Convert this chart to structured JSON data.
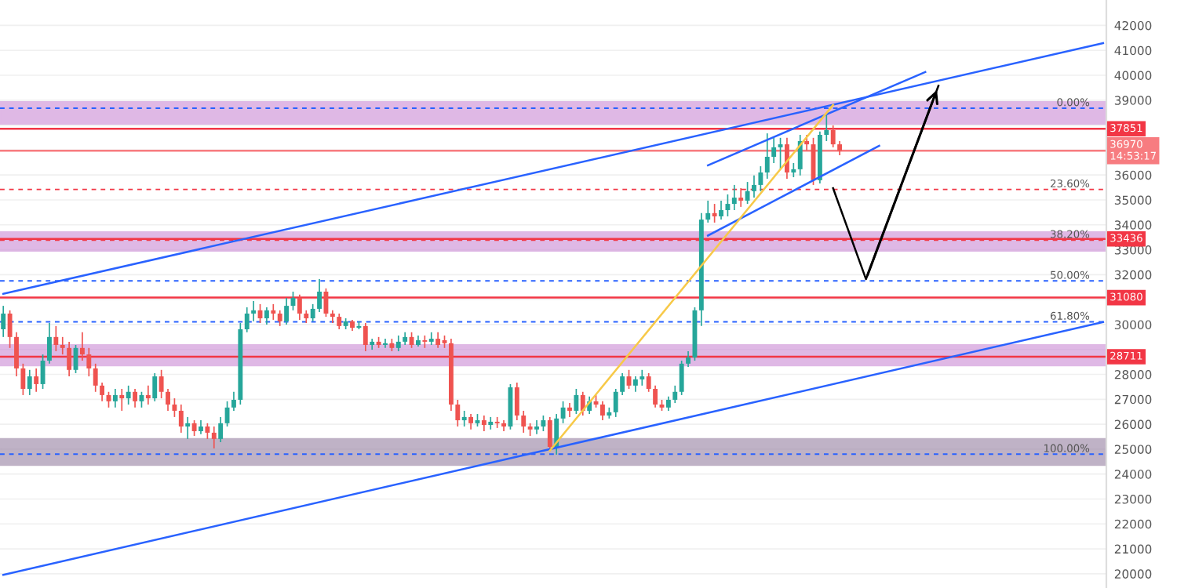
{
  "chart_data": {
    "type": "candlestick",
    "categories": [
      null,
      null,
      null,
      null,
      null,
      null,
      null,
      null,
      null,
      null,
      null,
      null,
      null,
      null,
      null,
      null,
      null,
      null,
      null,
      null,
      null,
      null,
      null,
      null,
      null,
      null,
      null,
      null,
      null,
      null,
      null,
      null,
      null,
      null,
      null,
      null,
      null,
      null,
      null,
      null,
      null,
      null,
      null,
      null,
      null,
      null,
      null,
      null,
      null,
      null,
      null,
      null,
      null,
      null,
      null,
      null,
      null,
      null,
      null,
      null,
      null,
      null,
      null,
      null,
      null,
      null,
      null,
      null,
      null,
      null,
      null,
      null,
      null,
      null,
      null,
      null,
      null,
      null,
      null,
      null,
      null,
      null,
      null,
      null,
      null,
      null,
      null,
      null,
      null,
      null,
      null,
      null,
      null,
      null,
      null,
      null,
      null,
      null,
      null,
      null,
      null,
      null,
      null,
      null,
      null,
      null,
      null,
      null,
      null,
      null,
      null,
      null,
      null,
      null,
      null,
      null,
      null,
      null,
      null,
      null,
      null,
      null,
      null,
      null,
      null,
      null,
      null,
      null,
      null,
      null,
      null,
      null,
      null,
      null,
      null,
      null,
      null,
      null,
      null,
      null,
      null,
      null,
      null,
      null,
      null,
      null,
      null,
      null,
      null,
      null,
      null,
      null,
      null,
      null,
      null,
      null,
      null,
      null,
      null,
      null,
      null,
      null,
      null,
      null,
      null,
      null,
      null,
      null
    ],
    "colors": [
      "#26a69a",
      "#ef5350",
      "#ef5350",
      "#ef5350",
      "#26a69a",
      "#ef5350",
      "#26a69a",
      "#26a69a",
      "#ef5350",
      "#ef5350",
      "#ef5350",
      "#26a69a",
      "#ef5350",
      "#ef5350",
      "#ef5350",
      "#ef5350",
      "#ef5350",
      "#26a69a",
      "#ef5350",
      "#26a69a",
      "#ef5350",
      "#26a69a",
      "#ef5350",
      "#26a69a",
      "#ef5350",
      "#ef5350",
      "#ef5350",
      "#ef5350",
      "#26a69a",
      "#ef5350",
      "#26a69a",
      "#ef5350",
      "#ef5350",
      "#26a69a",
      "#26a69a",
      "#26a69a",
      "#26a69a",
      "#26a69a",
      "#26a69a",
      "#ef5350",
      "#26a69a",
      "#ef5350",
      "#ef5350",
      "#26a69a",
      "#26a69a",
      "#ef5350",
      "#ef5350",
      "#26a69a",
      "#26a69a",
      "#ef5350",
      "#ef5350",
      "#ef5350",
      "#26a69a",
      "#ef5350",
      "#26a69a",
      "#ef5350",
      "#26a69a",
      "#ef5350",
      "#26a69a",
      "#ef5350",
      "#26a69a",
      "#26a69a",
      "#ef5350",
      "#26a69a",
      "#ef5350",
      "#26a69a",
      "#ef5350",
      "#ef5350",
      "#ef5350",
      "#ef5350",
      "#26a69a",
      "#ef5350",
      "#26a69a",
      "#ef5350",
      "#26a69a",
      "#ef5350",
      "#ef5350",
      "#26a69a",
      "#ef5350",
      "#ef5350",
      "#ef5350",
      "#26a69a",
      "#26a69a",
      "#ef5350",
      "#26a69a",
      "#26a69a",
      "#ef5350",
      "#26a69a",
      "#ef5350",
      "#26a69a",
      "#ef5350",
      "#ef5350",
      "#26a69a",
      "#26a69a",
      "#26a69a",
      "#ef5350",
      "#26a69a",
      "#26a69a",
      "#ef5350",
      "#ef5350",
      "#ef5350",
      "#26a69a",
      "#26a69a",
      "#26a69a",
      "#26a69a",
      "#26a69a",
      "#26a69a",
      "#26a69a",
      "#ef5350",
      "#26a69a",
      "#26a69a",
      "#26a69a",
      "#ef5350",
      "#26a69a",
      "#26a69a",
      "#26a69a",
      "#26a69a",
      "#26a69a",
      "#26a69a",
      "#ef5350",
      "#26a69a",
      "#26a69a",
      "#ef5350",
      "#ef5350",
      "#26a69a",
      "#26a69a",
      "#ef5350",
      "#ef5350",
      null,
      null,
      null,
      null,
      null,
      null,
      null,
      null,
      null,
      null,
      null,
      null,
      null,
      null,
      null,
      null,
      null,
      null,
      null,
      null,
      null,
      null,
      null,
      null,
      null,
      null,
      null,
      null,
      null,
      null,
      null,
      null,
      null,
      null,
      null,
      null,
      null,
      null,
      null,
      null
    ],
    "ohlc": [
      [
        29810,
        30750,
        29500,
        30440
      ],
      [
        30440,
        30570,
        29060,
        29500
      ],
      [
        29500,
        29690,
        27920,
        28240
      ],
      [
        28240,
        28430,
        27170,
        27420
      ],
      [
        27420,
        28180,
        27170,
        27920
      ],
      [
        27920,
        28240,
        27300,
        27610
      ],
      [
        27610,
        28800,
        27420,
        28550
      ],
      [
        28550,
        30060,
        28430,
        29500
      ],
      [
        29500,
        29940,
        28930,
        29180
      ],
      [
        29180,
        29500,
        28800,
        29060
      ],
      [
        29060,
        29310,
        27920,
        28180
      ],
      [
        28180,
        29180,
        28050,
        29060
      ],
      [
        29060,
        29690,
        28550,
        28800
      ],
      [
        28800,
        29060,
        27920,
        28240
      ],
      [
        28240,
        28430,
        27300,
        27550
      ],
      [
        27550,
        27670,
        26920,
        27170
      ],
      [
        27170,
        27300,
        26670,
        26920
      ],
      [
        26920,
        27420,
        26670,
        27170
      ],
      [
        27170,
        27420,
        26540,
        27040
      ],
      [
        27040,
        27550,
        26790,
        27300
      ],
      [
        27300,
        27420,
        26670,
        26920
      ],
      [
        26920,
        27300,
        26670,
        27170
      ],
      [
        27170,
        27550,
        26790,
        27040
      ],
      [
        27040,
        28050,
        26920,
        27920
      ],
      [
        27920,
        28180,
        27040,
        27300
      ],
      [
        27300,
        27420,
        26540,
        26790
      ],
      [
        26790,
        27040,
        26290,
        26540
      ],
      [
        26540,
        26790,
        25660,
        25910
      ],
      [
        25910,
        26290,
        25410,
        26040
      ],
      [
        26040,
        26160,
        25530,
        25720
      ],
      [
        25720,
        26160,
        25600,
        25910
      ],
      [
        25910,
        26040,
        25410,
        25660
      ],
      [
        25660,
        25910,
        25030,
        25410
      ],
      [
        25410,
        26290,
        25280,
        26040
      ],
      [
        26040,
        26920,
        25910,
        26670
      ],
      [
        26670,
        27300,
        26540,
        26980
      ],
      [
        26980,
        30060,
        26790,
        29810
      ],
      [
        29810,
        30690,
        29690,
        30440
      ],
      [
        30440,
        30940,
        30130,
        30570
      ],
      [
        30570,
        30820,
        30060,
        30250
      ],
      [
        30250,
        30690,
        30000,
        30570
      ],
      [
        30570,
        30820,
        30190,
        30440
      ],
      [
        30440,
        30570,
        29940,
        30130
      ],
      [
        30130,
        31070,
        30000,
        30750
      ],
      [
        30750,
        31320,
        30570,
        31070
      ],
      [
        31070,
        31200,
        30190,
        30440
      ],
      [
        30440,
        30570,
        30060,
        30250
      ],
      [
        30250,
        30820,
        30130,
        30630
      ],
      [
        30630,
        31820,
        30500,
        31320
      ],
      [
        31320,
        31450,
        30310,
        30440
      ],
      [
        30440,
        30570,
        30060,
        30310
      ],
      [
        30310,
        30440,
        29810,
        29940
      ],
      [
        29940,
        30250,
        29810,
        30130
      ],
      [
        30130,
        30190,
        29750,
        29870
      ],
      [
        29870,
        30130,
        29810,
        29940
      ],
      [
        29940,
        30060,
        28930,
        29180
      ],
      [
        29180,
        29430,
        28990,
        29310
      ],
      [
        29310,
        29500,
        29060,
        29180
      ],
      [
        29180,
        29430,
        29060,
        29250
      ],
      [
        29250,
        29430,
        28930,
        29060
      ],
      [
        29060,
        29560,
        28930,
        29310
      ],
      [
        29310,
        29690,
        29180,
        29500
      ],
      [
        29500,
        29690,
        29060,
        29180
      ],
      [
        29180,
        29560,
        29120,
        29370
      ],
      [
        29370,
        29560,
        29060,
        29310
      ],
      [
        29310,
        29690,
        29180,
        29430
      ],
      [
        29430,
        29690,
        29060,
        29180
      ],
      [
        29370,
        29560,
        29060,
        29250
      ],
      [
        29250,
        29430,
        26540,
        26790
      ],
      [
        26790,
        26980,
        25910,
        26160
      ],
      [
        26160,
        26540,
        25910,
        26290
      ],
      [
        26290,
        26410,
        25790,
        26040
      ],
      [
        26040,
        26410,
        25910,
        26160
      ],
      [
        26160,
        26350,
        25720,
        25970
      ],
      [
        25970,
        26290,
        25790,
        26100
      ],
      [
        26100,
        26290,
        25850,
        26040
      ],
      [
        26040,
        26160,
        25720,
        25910
      ],
      [
        25910,
        27610,
        25790,
        27480
      ],
      [
        27480,
        27670,
        26160,
        26350
      ],
      [
        26350,
        26540,
        25660,
        25910
      ],
      [
        25910,
        26040,
        25530,
        25790
      ],
      [
        25790,
        26160,
        25600,
        25910
      ],
      [
        25910,
        26350,
        25720,
        26160
      ],
      [
        26160,
        26290,
        24910,
        25090
      ],
      [
        25090,
        26410,
        24780,
        26230
      ],
      [
        26230,
        26920,
        26040,
        26670
      ],
      [
        26670,
        26850,
        26290,
        26540
      ],
      [
        26540,
        27420,
        26410,
        27170
      ],
      [
        27170,
        27300,
        26350,
        26540
      ],
      [
        26540,
        27110,
        26410,
        26920
      ],
      [
        26920,
        27170,
        26670,
        26790
      ],
      [
        26790,
        26920,
        26160,
        26350
      ],
      [
        26350,
        26670,
        26230,
        26480
      ],
      [
        26480,
        27420,
        26290,
        27300
      ],
      [
        27300,
        28050,
        27170,
        27920
      ],
      [
        27920,
        28180,
        27420,
        27550
      ],
      [
        27550,
        27920,
        27300,
        27800
      ],
      [
        27800,
        28180,
        27550,
        27920
      ],
      [
        27920,
        28050,
        27300,
        27420
      ],
      [
        27420,
        27550,
        26670,
        26790
      ],
      [
        26790,
        26980,
        26540,
        26670
      ],
      [
        26670,
        27110,
        26540,
        26980
      ],
      [
        26980,
        27550,
        26850,
        27300
      ],
      [
        27300,
        28550,
        27170,
        28430
      ],
      [
        28430,
        28930,
        28300,
        28680
      ],
      [
        28680,
        30690,
        28550,
        30570
      ],
      [
        30570,
        34470,
        29940,
        34210
      ],
      [
        34210,
        34970,
        34090,
        34470
      ],
      [
        34470,
        34840,
        34090,
        34340
      ],
      [
        34340,
        34970,
        34210,
        34590
      ],
      [
        34590,
        35220,
        34340,
        34840
      ],
      [
        34840,
        35600,
        34590,
        35090
      ],
      [
        35090,
        35470,
        34720,
        34970
      ],
      [
        34970,
        35720,
        34840,
        35350
      ],
      [
        35350,
        35980,
        35090,
        35600
      ],
      [
        35600,
        36350,
        35350,
        36100
      ],
      [
        36100,
        37670,
        35850,
        36730
      ],
      [
        36730,
        37490,
        36480,
        37110
      ],
      [
        37110,
        37490,
        36230,
        37230
      ],
      [
        37230,
        37490,
        35850,
        36100
      ],
      [
        36100,
        36480,
        35910,
        36230
      ],
      [
        36230,
        37610,
        35980,
        37360
      ],
      [
        37360,
        37610,
        36980,
        37230
      ],
      [
        37230,
        37490,
        35600,
        35790
      ],
      [
        35790,
        37740,
        35660,
        37610
      ],
      [
        37610,
        38430,
        37360,
        37800
      ],
      [
        37800,
        37990,
        37110,
        37230
      ],
      [
        37230,
        37360,
        36790,
        36970
      ],
      null,
      null,
      null,
      null,
      null,
      null,
      null,
      null,
      null,
      null,
      null,
      null,
      null,
      null,
      null,
      null,
      null,
      null,
      null,
      null,
      null,
      null,
      null,
      null,
      null,
      null,
      null,
      null,
      null,
      null,
      null,
      null,
      null,
      null,
      null,
      null,
      null,
      null,
      null,
      null
    ],
    "series": [
      {
        "type": "line",
        "color": "#2962ff",
        "values": [
          19960,
          null,
          null,
          null,
          null,
          null,
          null,
          null,
          null,
          null,
          null,
          null,
          null,
          null,
          null,
          null,
          null,
          null,
          null,
          null,
          null,
          null,
          null,
          null,
          null,
          null,
          null,
          null,
          null,
          null,
          null,
          null,
          null,
          null,
          null,
          null,
          null,
          null,
          null,
          null,
          null,
          null,
          null,
          null,
          null,
          null,
          null,
          null,
          null,
          null,
          null,
          null,
          null,
          null,
          null,
          null,
          null,
          null,
          null,
          null,
          null,
          null,
          null,
          null,
          null,
          null,
          null,
          null,
          null,
          null,
          null,
          null,
          null,
          null,
          null,
          null,
          null,
          null,
          null,
          null,
          null,
          null,
          null,
          null,
          null,
          null,
          null,
          null,
          null,
          null,
          null,
          null,
          null,
          null,
          null,
          null,
          null,
          null,
          null,
          null,
          null,
          null,
          null,
          null,
          null,
          null,
          null,
          null,
          null,
          null,
          null,
          null,
          null,
          null,
          null,
          null,
          null,
          null,
          null,
          null,
          null,
          null,
          null,
          null,
          null,
          null,
          null,
          null,
          null,
          null,
          null,
          null,
          null,
          null,
          null,
          null,
          null,
          null,
          null,
          null,
          null,
          null,
          null,
          null,
          null,
          null,
          null,
          null,
          null,
          null,
          null,
          null,
          null,
          null,
          null,
          null,
          null,
          null,
          null,
          null,
          null,
          null,
          null,
          null,
          null,
          null,
          null,
          30100
        ]
      },
      {
        "type": "line",
        "color": "#2962ff",
        "values": [
          31230,
          null,
          null,
          null,
          null,
          null,
          null,
          null,
          null,
          null,
          null,
          null,
          null,
          null,
          null,
          null,
          null,
          null,
          null,
          null,
          null,
          null,
          null,
          null,
          null,
          null,
          null,
          null,
          null,
          null,
          null,
          null,
          null,
          null,
          null,
          null,
          null,
          null,
          null,
          null,
          null,
          null,
          null,
          null,
          null,
          null,
          null,
          null,
          null,
          null,
          null,
          null,
          null,
          null,
          null,
          null,
          null,
          null,
          null,
          null,
          null,
          null,
          null,
          null,
          null,
          null,
          null,
          null,
          null,
          null,
          null,
          null,
          null,
          null,
          null,
          null,
          null,
          null,
          null,
          null,
          null,
          null,
          null,
          null,
          null,
          null,
          null,
          null,
          null,
          null,
          null,
          null,
          null,
          null,
          null,
          null,
          null,
          null,
          null,
          null,
          null,
          null,
          null,
          null,
          null,
          null,
          null,
          null,
          null,
          null,
          null,
          null,
          null,
          null,
          null,
          null,
          null,
          null,
          null,
          null,
          null,
          null,
          null,
          null,
          null,
          null,
          null,
          null,
          null,
          null,
          null,
          null,
          null,
          null,
          null,
          null,
          null,
          null,
          null,
          null,
          null,
          null,
          null,
          null,
          null,
          null,
          null,
          null,
          null,
          null,
          null,
          null,
          null,
          null,
          null,
          null,
          null,
          null,
          null,
          null,
          null,
          null,
          null,
          null,
          null,
          null,
          null,
          41290
        ]
      },
      {
        "type": "line",
        "color": "#2962ff",
        "values": [
          null,
          null,
          null,
          null,
          null,
          null,
          null,
          null,
          null,
          null,
          null,
          null,
          null,
          null,
          null,
          null,
          null,
          null,
          null,
          null,
          null,
          null,
          null,
          null,
          null,
          null,
          null,
          null,
          null,
          null,
          null,
          null,
          null,
          null,
          null,
          null,
          null,
          null,
          null,
          null,
          null,
          null,
          null,
          null,
          null,
          null,
          null,
          null,
          null,
          null,
          null,
          null,
          null,
          null,
          null,
          null,
          null,
          null,
          null,
          null,
          null,
          null,
          null,
          null,
          null,
          null,
          null,
          null,
          null,
          null,
          null,
          null,
          null,
          null,
          null,
          null,
          null,
          null,
          null,
          null,
          null,
          null,
          null,
          null,
          null,
          null,
          null,
          null,
          null,
          null,
          null,
          null,
          null,
          null,
          null,
          null,
          null,
          null,
          null,
          null,
          null,
          null,
          null,
          null,
          null,
          null,
          null,
          36390,
          null,
          null,
          null,
          null,
          null,
          null,
          null,
          null,
          null,
          null,
          null,
          null,
          null,
          null,
          null,
          null,
          null,
          null,
          null,
          null,
          null,
          null,
          null,
          null,
          null,
          null,
          null,
          null,
          null,
          null,
          null,
          null,
          40130,
          null,
          null,
          null,
          null,
          null,
          null,
          null,
          null,
          null,
          null,
          null,
          null,
          null,
          null,
          null,
          null,
          null,
          null,
          null,
          null,
          null,
          null,
          null,
          null,
          null,
          null,
          null
        ]
      },
      {
        "type": "line",
        "color": "#2962ff",
        "values": [
          null,
          null,
          null,
          null,
          null,
          null,
          null,
          null,
          null,
          null,
          null,
          null,
          null,
          null,
          null,
          null,
          null,
          null,
          null,
          null,
          null,
          null,
          null,
          null,
          null,
          null,
          null,
          null,
          null,
          null,
          null,
          null,
          null,
          null,
          null,
          null,
          null,
          null,
          null,
          null,
          null,
          null,
          null,
          null,
          null,
          null,
          null,
          null,
          null,
          null,
          null,
          null,
          null,
          null,
          null,
          null,
          null,
          null,
          null,
          null,
          null,
          null,
          null,
          null,
          null,
          null,
          null,
          null,
          null,
          null,
          null,
          null,
          null,
          null,
          null,
          null,
          null,
          null,
          null,
          null,
          null,
          null,
          null,
          null,
          null,
          null,
          null,
          null,
          null,
          null,
          null,
          null,
          null,
          null,
          null,
          null,
          null,
          null,
          null,
          null,
          null,
          null,
          null,
          null,
          null,
          null,
          null,
          33570,
          null,
          null,
          null,
          null,
          null,
          null,
          null,
          null,
          null,
          null,
          null,
          null,
          null,
          null,
          null,
          null,
          null,
          null,
          null,
          null,
          null,
          null,
          null,
          null,
          null,
          37170,
          null,
          null,
          null,
          null,
          null,
          null,
          null,
          null,
          null,
          null,
          null,
          null,
          null,
          null,
          null,
          null,
          null,
          null,
          null,
          null,
          null,
          null,
          null,
          null,
          null,
          null,
          null,
          null,
          null,
          null,
          null,
          null,
          null,
          null
        ]
      },
      {
        "type": "line",
        "color": "#f7c948",
        "values": [
          null,
          null,
          null,
          null,
          null,
          null,
          null,
          null,
          null,
          null,
          null,
          null,
          null,
          null,
          null,
          null,
          null,
          null,
          null,
          null,
          null,
          null,
          null,
          null,
          null,
          null,
          null,
          null,
          null,
          null,
          null,
          null,
          null,
          null,
          null,
          null,
          null,
          null,
          null,
          null,
          null,
          null,
          null,
          null,
          null,
          null,
          null,
          null,
          null,
          null,
          null,
          null,
          null,
          null,
          null,
          null,
          null,
          null,
          null,
          null,
          null,
          null,
          null,
          null,
          null,
          null,
          null,
          null,
          null,
          null,
          null,
          null,
          null,
          null,
          null,
          null,
          null,
          null,
          null,
          null,
          null,
          null,
          null,
          24940,
          null,
          null,
          null,
          null,
          null,
          null,
          null,
          null,
          null,
          null,
          null,
          null,
          null,
          null,
          null,
          null,
          null,
          null,
          null,
          null,
          null,
          null,
          null,
          null,
          null,
          null,
          null,
          null,
          null,
          null,
          null,
          null,
          null,
          null,
          null,
          null,
          null,
          null,
          null,
          null,
          null,
          null,
          38810,
          null,
          null,
          null,
          null,
          null,
          null,
          null,
          null,
          null,
          null,
          null,
          null,
          null,
          null,
          null,
          null,
          null,
          null,
          null,
          null,
          null,
          null,
          null,
          null,
          null,
          null,
          null,
          null,
          null,
          null,
          null,
          null,
          null,
          null,
          null,
          null,
          null,
          null,
          null,
          null,
          null
        ]
      },
      {
        "type": "line",
        "color": "#000000",
        "values": [
          null,
          null,
          null,
          null,
          null,
          null,
          null,
          null,
          null,
          null,
          null,
          null,
          null,
          null,
          null,
          null,
          null,
          null,
          null,
          null,
          null,
          null,
          null,
          null,
          null,
          null,
          null,
          null,
          null,
          null,
          null,
          null,
          null,
          null,
          null,
          null,
          null,
          null,
          null,
          null,
          null,
          null,
          null,
          null,
          null,
          null,
          null,
          null,
          null,
          null,
          null,
          null,
          null,
          null,
          null,
          null,
          null,
          null,
          null,
          null,
          null,
          null,
          null,
          null,
          null,
          null,
          null,
          null,
          null,
          null,
          null,
          null,
          null,
          null,
          null,
          null,
          null,
          null,
          null,
          null,
          null,
          null,
          null,
          null,
          null,
          null,
          null,
          null,
          null,
          null,
          null,
          null,
          null,
          null,
          null,
          null,
          null,
          null,
          null,
          null,
          null,
          null,
          null,
          null,
          null,
          null,
          null,
          null,
          null,
          null,
          null,
          null,
          null,
          null,
          null,
          null,
          null,
          null,
          null,
          null,
          null,
          null,
          null,
          null,
          null,
          null,
          35470,
          null,
          null,
          null,
          null,
          31820,
          null,
          null,
          null,
          null,
          null,
          null,
          null,
          null,
          null,
          null,
          39580,
          null,
          null,
          null,
          null,
          null,
          null,
          null,
          null,
          null,
          null,
          null,
          null,
          null,
          null,
          null,
          null,
          null,
          null,
          null,
          null,
          null,
          null,
          null,
          null,
          null
        ]
      }
    ],
    "bands": [
      {
        "axis": "y",
        "from": 38050,
        "to": 38930,
        "color": "#ce93d8"
      },
      {
        "axis": "y",
        "from": 28360,
        "to": 29180,
        "color": "#ce93d8"
      },
      {
        "axis": "y",
        "from": 24360,
        "to": 25410,
        "color": "#9e8aa8"
      },
      {
        "axis": "y",
        "from": 32960,
        "to": 33710,
        "color": "#ce93d8"
      }
    ],
    "ref_lines": [
      {
        "axis": "y",
        "value": 37851,
        "label": "37851",
        "color": "#f23645",
        "line_style": "solid"
      },
      {
        "axis": "y",
        "value": 36970,
        "label": "36970\n14:53:17",
        "color": "#f77c80",
        "line_style": "solid"
      },
      {
        "axis": "y",
        "value": 33436,
        "label": "33436",
        "color": "#f23645",
        "line_style": "solid"
      },
      {
        "axis": "y",
        "value": 31080,
        "label": "31080",
        "color": "#f23645",
        "line_style": "solid"
      },
      {
        "axis": "y",
        "value": 28711,
        "label": "28711",
        "color": "#f23645",
        "line_style": "solid"
      },
      {
        "axis": "y",
        "value": 38680,
        "color": "#2962ff",
        "line_style": "dashed"
      },
      {
        "axis": "y",
        "value": 35420,
        "color": "#f23645",
        "line_style": "dashed"
      },
      {
        "axis": "y",
        "value": 33390,
        "color": "#f23645",
        "line_style": "dashed"
      },
      {
        "axis": "y",
        "value": 31750,
        "color": "#2962ff",
        "line_style": "dashed"
      },
      {
        "axis": "y",
        "value": 30110,
        "color": "#2962ff",
        "line_style": "dashed"
      },
      {
        "axis": "y",
        "value": 24800,
        "color": "#2962ff",
        "line_style": "dashed"
      }
    ],
    "annotations": [
      {
        "text": "0.00%",
        "y": 38680
      },
      {
        "text": "23.60%",
        "y": 35420
      },
      {
        "text": "38.20%",
        "y": 33390
      },
      {
        "text": "50.00%",
        "y": 31750
      },
      {
        "text": "61.80%",
        "y": 30110
      },
      {
        "text": "100.00%",
        "y": 24800
      }
    ],
    "ylim": [
      19430,
      43020
    ],
    "yticks": [
      20000,
      21000,
      22000,
      23000,
      24000,
      25000,
      26000,
      27000,
      28000,
      {
        "value": 29000,
        "label": null
      },
      30000,
      {
        "value": 31000,
        "label": null
      },
      32000,
      33000,
      34000,
      35000,
      36000,
      {
        "value": 37000,
        "label": null
      },
      {
        "value": 38000,
        "label": null
      },
      39000,
      40000,
      41000,
      42000
    ],
    "tick_labels": "y",
    "grid": "y"
  }
}
